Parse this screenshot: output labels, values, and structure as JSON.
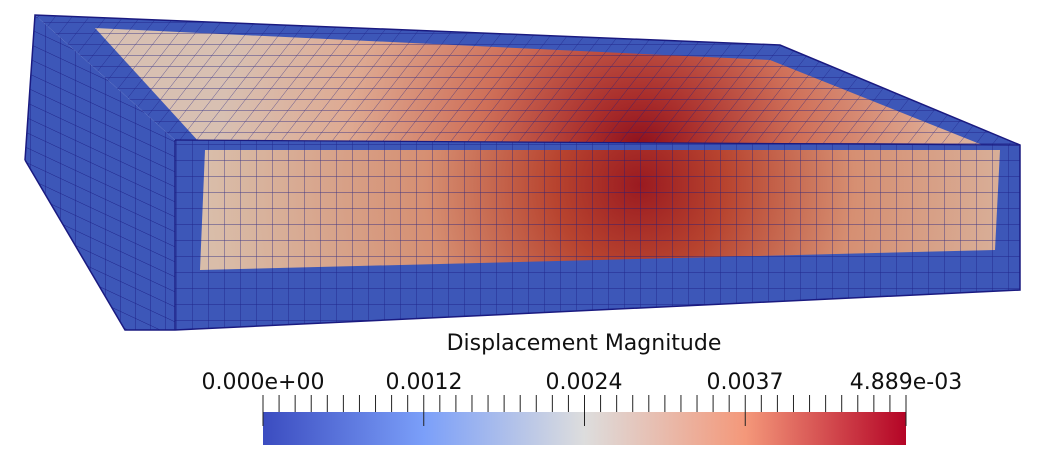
{
  "scalar_bar": {
    "title": "Displacement Magnitude",
    "labels": [
      "0.000e+00",
      "0.0012",
      "0.0024",
      "0.0037",
      "4.889e-03"
    ],
    "range": [
      0,
      0.004889
    ],
    "colormap": [
      "#3b4cc0",
      "#dddddd",
      "#b40426"
    ]
  },
  "mesh": {
    "field": "Displacement Magnitude",
    "edge_color": "#1a1a80"
  }
}
